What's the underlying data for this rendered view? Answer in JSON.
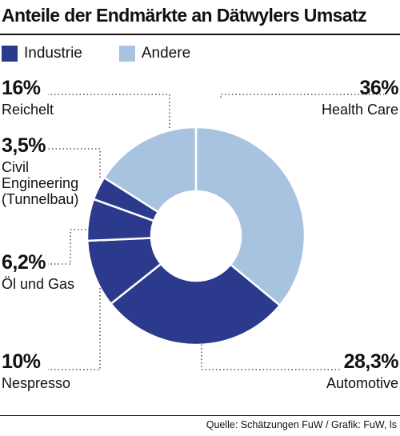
{
  "title": "Anteile der Endmärkte an Dätwylers Umsatz",
  "legend": [
    {
      "label": "Industrie",
      "color": "#2b3a8c"
    },
    {
      "label": "Andere",
      "color": "#a7c3df"
    }
  ],
  "chart_data": {
    "type": "pie",
    "title": "Anteile der Endmärkte an Dätwylers Umsatz",
    "donut": true,
    "categories": [
      "Health Care",
      "Automotive",
      "Nespresso",
      "Öl und Gas",
      "Civil Engineering (Tunnelbau)",
      "Reichelt"
    ],
    "values": [
      36,
      28.3,
      10,
      6.2,
      3.5,
      16
    ],
    "value_labels": [
      "36%",
      "28,3%",
      "10%",
      "6,2%",
      "3,5%",
      "16%"
    ],
    "groups": [
      "Andere",
      "Industrie",
      "Industrie",
      "Industrie",
      "Industrie",
      "Andere"
    ],
    "legend_position": "top"
  },
  "source": "Quelle: Schätzungen FuW / Grafik: FuW, ls"
}
